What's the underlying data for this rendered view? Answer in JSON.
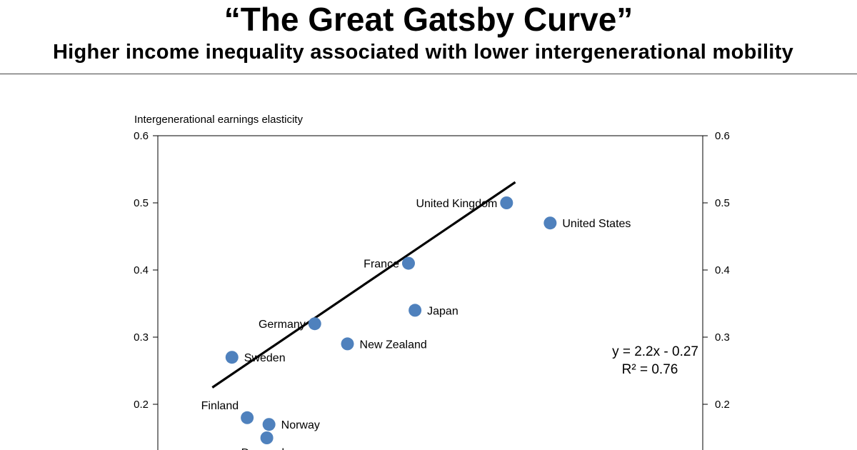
{
  "header": {
    "title": "“The Great Gatsby Curve”",
    "subtitle": "Higher income inequality associated with lower intergenerational mobility"
  },
  "chart_data": {
    "type": "scatter",
    "ylabel": "Intergenerational earnings elasticity",
    "xlim": [
      0.2,
      0.45
    ],
    "ylim": [
      0.0,
      0.6
    ],
    "y_ticks": [
      "0.6",
      "0.5",
      "0.4",
      "0.3",
      "0.2"
    ],
    "y_tick_values": [
      0.6,
      0.5,
      0.4,
      0.3,
      0.2
    ],
    "points": [
      {
        "label": "United Kingdom",
        "x": 0.36,
        "y": 0.5,
        "label_side": "left"
      },
      {
        "label": "United States",
        "x": 0.38,
        "y": 0.47,
        "label_side": "right"
      },
      {
        "label": "France",
        "x": 0.315,
        "y": 0.41,
        "label_side": "left"
      },
      {
        "label": "Japan",
        "x": 0.318,
        "y": 0.34,
        "label_side": "right"
      },
      {
        "label": "Germany",
        "x": 0.272,
        "y": 0.32,
        "label_side": "left"
      },
      {
        "label": "New Zealand",
        "x": 0.287,
        "y": 0.29,
        "label_side": "right"
      },
      {
        "label": "Sweden",
        "x": 0.234,
        "y": 0.27,
        "label_side": "right"
      },
      {
        "label": "Finland",
        "x": 0.241,
        "y": 0.18,
        "label_side": "above-left"
      },
      {
        "label": "Norway",
        "x": 0.251,
        "y": 0.17,
        "label_side": "right"
      },
      {
        "label": "Denmark",
        "x": 0.25,
        "y": 0.15,
        "label_side": "below"
      }
    ],
    "trendline": {
      "slope": 2.2,
      "intercept": -0.27,
      "x_start": 0.225,
      "x_end": 0.364
    },
    "equation": "y = 2.2x - 0.27",
    "r_squared": "R² = 0.76",
    "colors": {
      "marker": "#4F81BD",
      "line": "#000000",
      "axis": "#000000"
    },
    "grid": false
  }
}
